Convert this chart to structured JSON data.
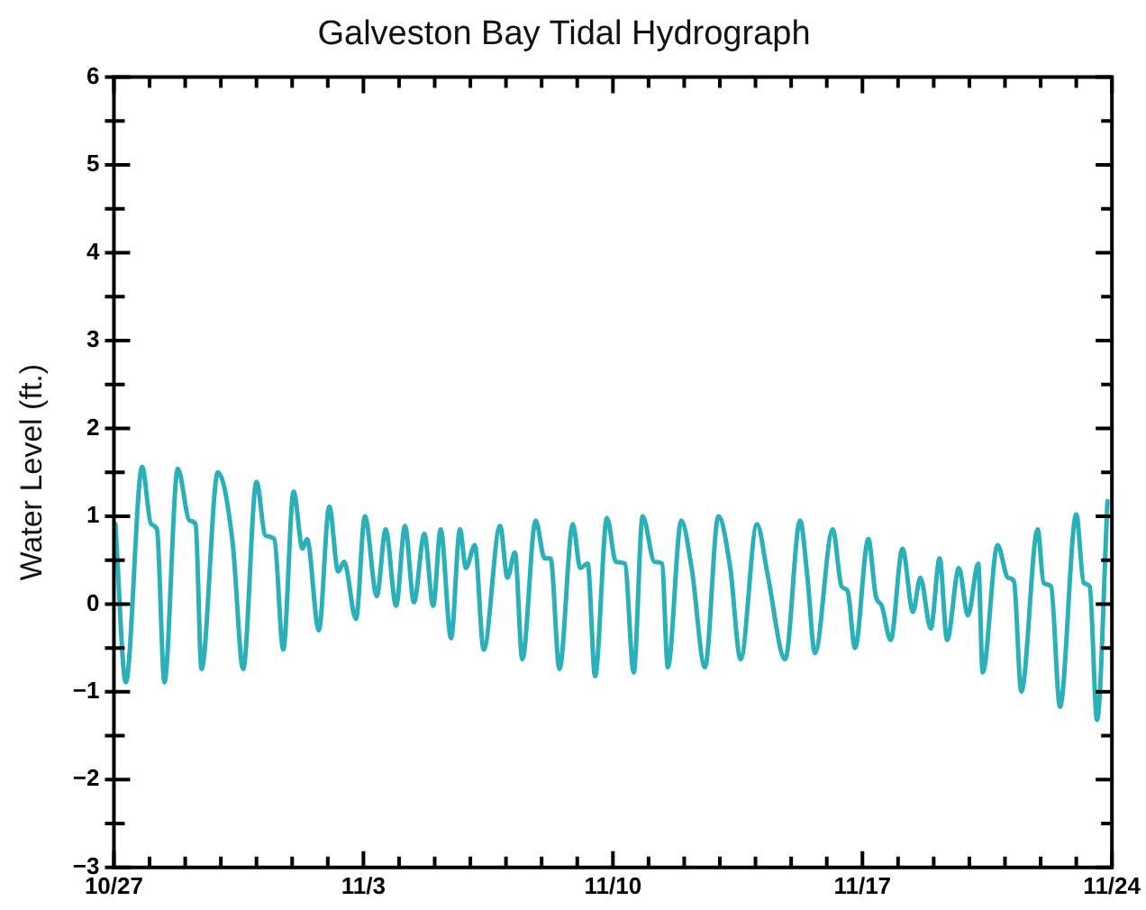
{
  "chart_data": {
    "type": "line",
    "title": "Galveston Bay Tidal Hydrograph",
    "ylabel": "Water Level (ft.)",
    "x": [
      "--10-27T01:00",
      "--10-27T08:00",
      "--10-27T19:00",
      "--10-28T01:00",
      "--10-28T05:00",
      "--10-28T10:00",
      "--10-28T19:00",
      "--10-29T03:00",
      "--10-29T07:00",
      "--10-29T11:00",
      "--10-29T22:00",
      "--10-30T08:00",
      "--10-30T15:00",
      "--10-31T00:00",
      "--10-31T06:00",
      "--10-31T12:00",
      "--10-31T18:00",
      "--11-01T01:00",
      "--11-01T07:00",
      "--11-01T10:00",
      "--11-01T18:00",
      "--11-02T01:00",
      "--11-02T07:00",
      "--11-02T11:00",
      "--11-02T19:00",
      "--11-03T01:00",
      "--11-03T09:00",
      "--11-03T15:00",
      "--11-03T22:00",
      "--11-04T04:00",
      "--11-04T10:00",
      "--11-04T17:00",
      "--11-04T23:00",
      "--11-05T04:00",
      "--11-05T11:00",
      "--11-05T17:00",
      "--11-05T21:00",
      "--11-06T03:00",
      "--11-06T09:00",
      "--11-06T20:00",
      "--11-07T01:00",
      "--11-07T06:00",
      "--11-07T11:00",
      "--11-07T20:00",
      "--11-08T02:00",
      "--11-08T06:00",
      "--11-08T12:00",
      "--11-08T21:00",
      "--11-09T02:00",
      "--11-09T07:00",
      "--11-09T12:00",
      "--11-09T20:00",
      "--11-10T02:00",
      "--11-10T08:00",
      "--11-10T14:00",
      "--11-10T20:00",
      "--11-11T04:00",
      "--11-11T09:00",
      "--11-11T13:00",
      "--11-11T22:00",
      "--11-12T05:00",
      "--11-12T14:00",
      "--11-12T23:00",
      "--11-13T07:00",
      "--11-13T14:00",
      "--11-14T01:00",
      "--11-14T08:00",
      "--11-14T20:00",
      "--11-15T06:00",
      "--11-15T11:00",
      "--11-15T16:00",
      "--11-16T04:00",
      "--11-16T10:00",
      "--11-16T14:00",
      "--11-16T19:00",
      "--11-17T04:00",
      "--11-17T09:00",
      "--11-17T13:00",
      "--11-17T19:00",
      "--11-18T03:00",
      "--11-18T10:00",
      "--11-18T15:00",
      "--11-18T22:00",
      "--11-19T04:00",
      "--11-19T09:00",
      "--11-19T17:00",
      "--11-19T23:00",
      "--11-20T06:00",
      "--11-20T09:00",
      "--11-20T19:00",
      "--11-21T02:00",
      "--11-21T06:00",
      "--11-21T11:00",
      "--11-21T22:00",
      "--11-22T02:00",
      "--11-22T07:00",
      "--11-22T13:00",
      "--11-23T00:00",
      "--11-23T05:00",
      "--11-23T09:00",
      "--11-23T14:00",
      "--11-23T21:00"
    ],
    "series": [
      {
        "color": "#2ab0b8",
        "values": [
          0.91,
          -0.89,
          1.56,
          0.91,
          0.85,
          -0.89,
          1.54,
          0.95,
          0.91,
          -0.74,
          1.5,
          0.69,
          -0.74,
          1.39,
          0.78,
          0.74,
          -0.52,
          1.28,
          0.63,
          0.74,
          -0.3,
          1.11,
          0.37,
          0.48,
          -0.17,
          1.0,
          0.09,
          0.85,
          -0.02,
          0.89,
          0.02,
          0.8,
          -0.02,
          0.85,
          -0.39,
          0.85,
          0.41,
          0.67,
          -0.52,
          0.89,
          0.3,
          0.59,
          -0.63,
          0.95,
          0.52,
          0.52,
          -0.74,
          0.91,
          0.41,
          0.46,
          -0.82,
          0.98,
          0.48,
          0.46,
          -0.78,
          1.0,
          0.48,
          0.46,
          -0.72,
          0.95,
          0.41,
          -0.72,
          1.0,
          0.41,
          -0.63,
          0.91,
          0.35,
          -0.63,
          0.95,
          0.3,
          -0.56,
          0.85,
          0.2,
          0.15,
          -0.5,
          0.74,
          0.09,
          -0.02,
          -0.41,
          0.63,
          -0.09,
          0.3,
          -0.28,
          0.52,
          -0.41,
          0.41,
          -0.13,
          0.46,
          -0.78,
          0.67,
          0.3,
          0.26,
          -1.0,
          0.85,
          0.24,
          0.2,
          -1.17,
          1.02,
          0.24,
          0.2,
          -1.32,
          1.17
        ]
      }
    ],
    "xlim": [
      "--10-27",
      "--11-24"
    ],
    "xticks": [
      {
        "value": "--10-27",
        "label": "10/27"
      },
      {
        "value": "--10-28",
        "label": null
      },
      {
        "value": "--10-29",
        "label": null
      },
      {
        "value": "--10-30",
        "label": null
      },
      {
        "value": "--10-31",
        "label": null
      },
      {
        "value": "--11-01",
        "label": null
      },
      {
        "value": "--11-02",
        "label": null
      },
      {
        "value": "--11-03",
        "label": "11/3"
      },
      {
        "value": "--11-04",
        "label": null
      },
      {
        "value": "--11-05",
        "label": null
      },
      {
        "value": "--11-06",
        "label": null
      },
      {
        "value": "--11-07",
        "label": null
      },
      {
        "value": "--11-08",
        "label": null
      },
      {
        "value": "--11-09",
        "label": null
      },
      {
        "value": "--11-10",
        "label": "11/10"
      },
      {
        "value": "--11-11",
        "label": null
      },
      {
        "value": "--11-12",
        "label": null
      },
      {
        "value": "--11-13",
        "label": null
      },
      {
        "value": "--11-14",
        "label": null
      },
      {
        "value": "--11-15",
        "label": null
      },
      {
        "value": "--11-16",
        "label": null
      },
      {
        "value": "--11-17",
        "label": "11/17"
      },
      {
        "value": "--11-18",
        "label": null
      },
      {
        "value": "--11-19",
        "label": null
      },
      {
        "value": "--11-20",
        "label": null
      },
      {
        "value": "--11-21",
        "label": null
      },
      {
        "value": "--11-22",
        "label": null
      },
      {
        "value": "--11-23",
        "label": null
      },
      {
        "value": "--11-24",
        "label": "11/24"
      }
    ],
    "ylim": [
      -3,
      6
    ],
    "yticks": [
      {
        "value": -3,
        "label": "−3"
      },
      {
        "value": -2.5,
        "label": null
      },
      {
        "value": -2,
        "label": "−2"
      },
      {
        "value": -1.5,
        "label": null
      },
      {
        "value": -1,
        "label": "−1"
      },
      {
        "value": -0.5,
        "label": null
      },
      0,
      {
        "value": 0.5,
        "label": null
      },
      1,
      {
        "value": 1.5,
        "label": null
      },
      2,
      {
        "value": 2.5,
        "label": null
      },
      3,
      {
        "value": 3.5,
        "label": null
      },
      4,
      {
        "value": 4.5,
        "label": null
      },
      5,
      {
        "value": 5.5,
        "label": null
      },
      6
    ],
    "grid": false,
    "legend": false,
    "marker": "none",
    "line_style": "solid"
  }
}
